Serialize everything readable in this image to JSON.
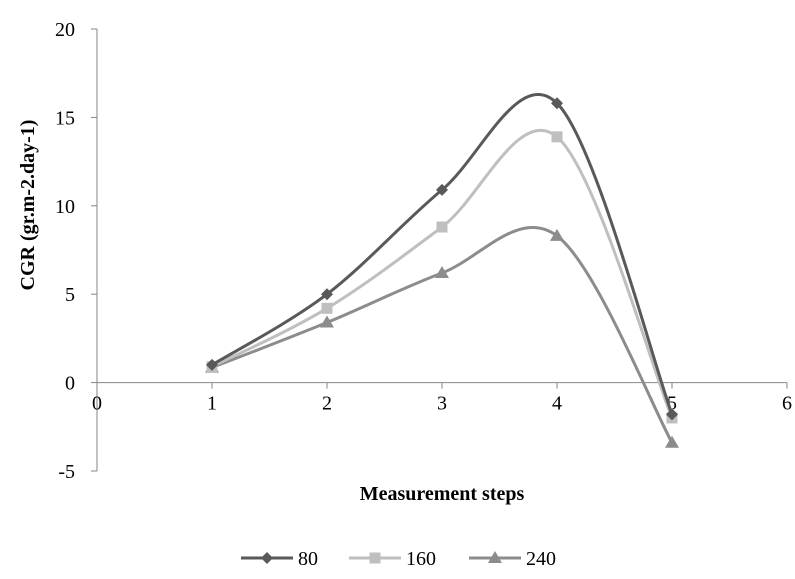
{
  "chart_data": {
    "type": "line",
    "smooth": true,
    "xlabel": "Measurement steps",
    "ylabel": "CGR (gr.m-2.day-1)",
    "xlim": [
      0,
      6
    ],
    "ylim": [
      -5,
      20
    ],
    "x_ticks": [
      "0",
      "1",
      "2",
      "3",
      "4",
      "5",
      "6"
    ],
    "y_ticks": [
      "-5",
      "0",
      "5",
      "10",
      "15",
      "20"
    ],
    "grid": false,
    "legend_position": "bottom",
    "x": [
      1,
      2,
      3,
      4,
      5
    ],
    "series": [
      {
        "name": "80",
        "values": [
          1.0,
          5.0,
          10.9,
          15.8,
          -1.8
        ],
        "color": "#595959",
        "marker": "diamond"
      },
      {
        "name": "160",
        "values": [
          0.9,
          4.2,
          8.8,
          13.9,
          -2.0
        ],
        "color": "#bfbfbf",
        "marker": "square"
      },
      {
        "name": "240",
        "values": [
          0.85,
          3.4,
          6.2,
          8.3,
          -3.4
        ],
        "color": "#8c8c8c",
        "marker": "triangle"
      }
    ]
  }
}
